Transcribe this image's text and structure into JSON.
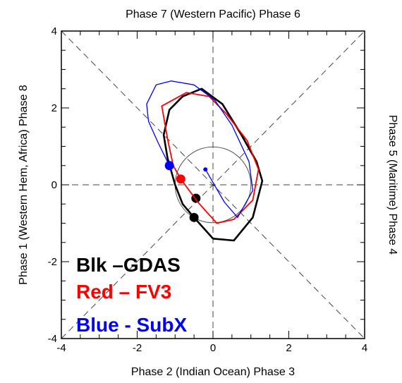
{
  "chart_data": {
    "type": "line",
    "title_top": "Phase 7 (Western Pacific) Phase 6",
    "xlabel": "Phase 2 (Indian Ocean) Phase 3",
    "ylabel": "Phase 1 (Western Hem, Africa) Phase 8",
    "ylabel_right": "Phase 5 (Maritime) Phase 4",
    "xlim": [
      -4,
      4
    ],
    "ylim": [
      -4,
      4
    ],
    "xticks": [
      "-4",
      "-2",
      "0",
      "2",
      "4"
    ],
    "yticks": [
      "-4",
      "-2",
      "0",
      "2",
      "4"
    ],
    "unit_circle_radius": 1,
    "dashed_guides": true,
    "series": [
      {
        "name": "Blk –GDAS",
        "color": "#000000",
        "x": [
          -0.5,
          -0.8,
          -1.0,
          -1.2,
          -1.3,
          -1.15,
          -0.8,
          -0.3,
          0.25,
          0.75,
          1.15,
          1.3,
          1.05,
          0.55,
          0.0,
          -0.5
        ],
        "y": [
          -0.85,
          -0.5,
          0.0,
          0.7,
          1.3,
          1.95,
          2.3,
          2.5,
          2.1,
          1.3,
          0.6,
          0.1,
          -0.85,
          -1.45,
          -1.4,
          -0.85
        ],
        "markers": [
          [
            -0.5,
            -0.85
          ],
          [
            -0.45,
            -0.35
          ]
        ]
      },
      {
        "name": "Red – FV3",
        "color": "#ff0000",
        "x": [
          -0.85,
          -1.05,
          -1.2,
          -1.35,
          -0.7,
          -0.1,
          0.35,
          0.9,
          1.2,
          1.05,
          0.55,
          0.1,
          -0.4,
          -0.85
        ],
        "y": [
          0.15,
          0.5,
          1.2,
          2.05,
          2.4,
          2.3,
          1.85,
          1.15,
          0.4,
          -0.4,
          -0.9,
          -1.0,
          -0.45,
          0.15
        ],
        "markers": [
          [
            -0.85,
            0.15
          ]
        ]
      },
      {
        "name": "Blue - SubX",
        "color": "#0000ff",
        "x": [
          -1.15,
          -1.45,
          -1.7,
          -1.75,
          -1.5,
          -1.1,
          -0.5,
          0.05,
          0.5,
          0.95,
          1.05,
          0.65,
          0.3,
          -0.2
        ],
        "y": [
          0.5,
          1.1,
          1.65,
          2.1,
          2.6,
          2.7,
          2.6,
          2.2,
          1.55,
          0.6,
          -0.15,
          -0.85,
          -0.45,
          0.4
        ],
        "markers": [
          [
            -1.15,
            0.5
          ],
          [
            -0.2,
            0.4
          ]
        ]
      }
    ]
  }
}
